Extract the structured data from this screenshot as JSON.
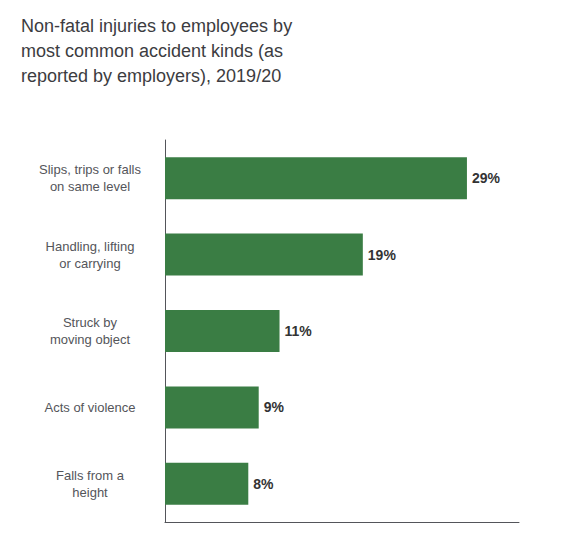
{
  "chart_data": {
    "type": "bar",
    "orientation": "horizontal",
    "title": "Non-fatal injuries to employees by\nmost common accident kinds (as\nreported by employers), 2019/20",
    "categories": [
      "Falls from a\nheight",
      "Acts of violence",
      "Struck by\nmoving object",
      "Handling, lifting\nor carrying",
      "Slips, trips or falls\non same level"
    ],
    "values": [
      8,
      9,
      11,
      19,
      29
    ],
    "value_labels": [
      "8%",
      "9%",
      "11%",
      "19%",
      "29%"
    ],
    "data_labels": true,
    "color": "#3a7d44",
    "xlim": [
      0,
      34
    ],
    "grid": false,
    "tick_labels": "y"
  }
}
